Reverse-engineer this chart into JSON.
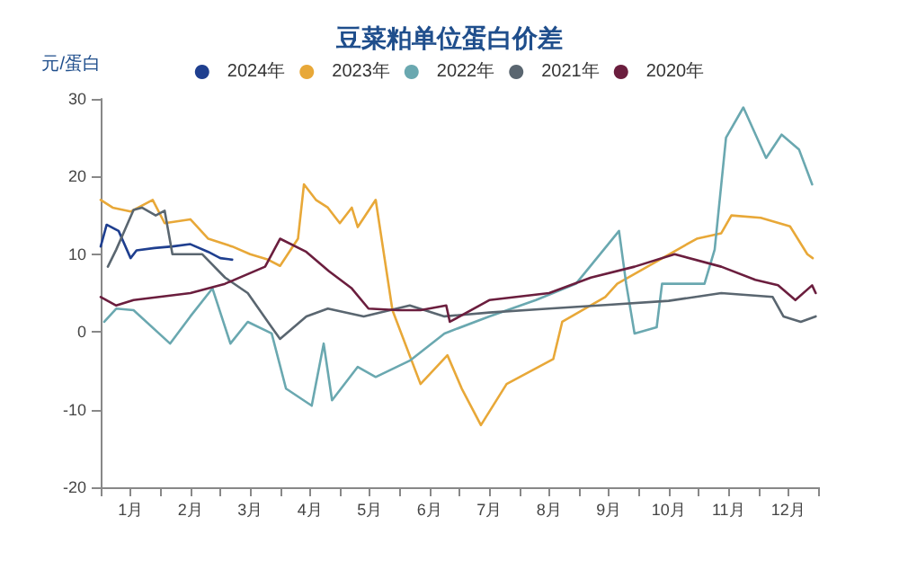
{
  "chart_data": {
    "type": "line",
    "title": "豆菜粕单位蛋白价差",
    "ylabel": "元/蛋白",
    "legend": "top",
    "grid": false,
    "marker": "none",
    "line_style": "solid",
    "xlim": [
      0,
      12
    ],
    "xticks": [
      {
        "value": 0,
        "label": null
      },
      {
        "value": 0.5,
        "label": "1月"
      },
      {
        "value": 1,
        "label": null
      },
      {
        "value": 1.5,
        "label": "2月"
      },
      {
        "value": 2,
        "label": null
      },
      {
        "value": 2.5,
        "label": "3月"
      },
      {
        "value": 3,
        "label": null
      },
      {
        "value": 3.5,
        "label": "4月"
      },
      {
        "value": 4,
        "label": null
      },
      {
        "value": 4.5,
        "label": "5月"
      },
      {
        "value": 5,
        "label": null
      },
      {
        "value": 5.5,
        "label": "6月"
      },
      {
        "value": 6,
        "label": null
      },
      {
        "value": 6.5,
        "label": "7月"
      },
      {
        "value": 7,
        "label": null
      },
      {
        "value": 7.5,
        "label": "8月"
      },
      {
        "value": 8,
        "label": null
      },
      {
        "value": 8.5,
        "label": "9月"
      },
      {
        "value": 9,
        "label": null
      },
      {
        "value": 9.5,
        "label": "10月"
      },
      {
        "value": 10,
        "label": null
      },
      {
        "value": 10.5,
        "label": "11月"
      },
      {
        "value": 11,
        "label": null
      },
      {
        "value": 11.5,
        "label": "12月"
      },
      {
        "value": 12,
        "label": null
      }
    ],
    "ylim": [
      -20,
      30
    ],
    "yticks": [
      -20,
      -10,
      0,
      10,
      20,
      30
    ],
    "series": [
      {
        "name": "2024年",
        "color": "#1f3f8f",
        "x": [
          0,
          0.1,
          0.3,
          0.5,
          0.6,
          0.9,
          1.2,
          1.5,
          1.8,
          2.0,
          2.2
        ],
        "values": [
          11,
          13.8,
          13,
          9.5,
          10.5,
          10.8,
          11,
          11.3,
          10.3,
          9.5,
          9.3
        ]
      },
      {
        "name": "2023年",
        "color": "#e8a838",
        "x": [
          0,
          0.2,
          0.5,
          0.87,
          1.07,
          1.5,
          1.8,
          2.2,
          2.5,
          2.8,
          3.0,
          3.3,
          3.4,
          3.6,
          3.8,
          4.0,
          4.2,
          4.3,
          4.6,
          4.88,
          5.35,
          5.8,
          6.04,
          6.36,
          6.79,
          7.57,
          7.72,
          8.44,
          8.64,
          9.51,
          9.97,
          10.38,
          10.55,
          11.04,
          11.53,
          11.82,
          11.91
        ],
        "values": [
          17,
          16,
          15.5,
          17,
          14,
          14.5,
          12,
          11,
          10,
          9.3,
          8.5,
          12,
          19,
          17,
          16,
          14,
          16,
          13.5,
          17,
          2.8,
          -6.7,
          -3,
          -7.3,
          -12,
          -6.7,
          -3.5,
          1.3,
          4.5,
          6.2,
          10,
          12,
          12.7,
          15,
          14.7,
          13.6,
          10,
          9.5
        ]
      },
      {
        "name": "2022年",
        "color": "#6aa8b0",
        "x": [
          0.06,
          0.26,
          0.55,
          1.16,
          1.5,
          1.87,
          2.17,
          2.46,
          2.86,
          3.1,
          3.53,
          3.73,
          3.87,
          4.3,
          4.6,
          5.17,
          5.75,
          6.5,
          7.28,
          7.95,
          8.67,
          8.79,
          8.93,
          9.3,
          9.39,
          10.1,
          10.27,
          10.46,
          10.75,
          11.13,
          11.39,
          11.68,
          11.9
        ],
        "values": [
          1.3,
          3,
          2.8,
          -1.5,
          2,
          5.6,
          -1.5,
          1.3,
          -0.2,
          -7.3,
          -9.5,
          -1.5,
          -8.8,
          -4.5,
          -5.8,
          -3.7,
          -0.2,
          2,
          4.1,
          6.2,
          13,
          6.2,
          -0.2,
          0.6,
          6.2,
          6.2,
          10.6,
          25,
          28.9,
          22.4,
          25.4,
          23.5,
          19
        ]
      },
      {
        "name": "2021年",
        "color": "#5a6670",
        "x": [
          0.12,
          0.26,
          0.55,
          0.69,
          0.92,
          1.07,
          1.2,
          1.7,
          2.08,
          2.46,
          2.86,
          3.0,
          3.44,
          3.8,
          4.4,
          5.17,
          5.75,
          6.5,
          7.5,
          8.5,
          9.5,
          10.38,
          11.24,
          11.42,
          11.71,
          11.96
        ],
        "values": [
          8.4,
          10.6,
          15.7,
          16,
          15,
          15.6,
          10,
          10,
          7,
          5,
          0.6,
          -0.9,
          2,
          3,
          2,
          3.4,
          2,
          2.5,
          3,
          3.5,
          4,
          5,
          4.5,
          2,
          1.3,
          2
        ]
      },
      {
        "name": "2020年",
        "color": "#6b1e3e",
        "x": [
          0,
          0.26,
          0.55,
          1.5,
          2.08,
          2.75,
          3.0,
          3.44,
          3.82,
          4.2,
          4.48,
          4.97,
          5.35,
          5.78,
          5.84,
          6.5,
          7.5,
          8.2,
          8.93,
          9.6,
          10.38,
          10.95,
          11.33,
          11.62,
          11.9,
          11.96
        ],
        "values": [
          4.5,
          3.4,
          4.1,
          5,
          6.2,
          8.4,
          12,
          10.3,
          7.8,
          5.6,
          3,
          2.8,
          2.8,
          3.4,
          1.3,
          4.1,
          5,
          7,
          8.4,
          10,
          8.4,
          6.7,
          6,
          4.1,
          6,
          5
        ]
      }
    ]
  }
}
